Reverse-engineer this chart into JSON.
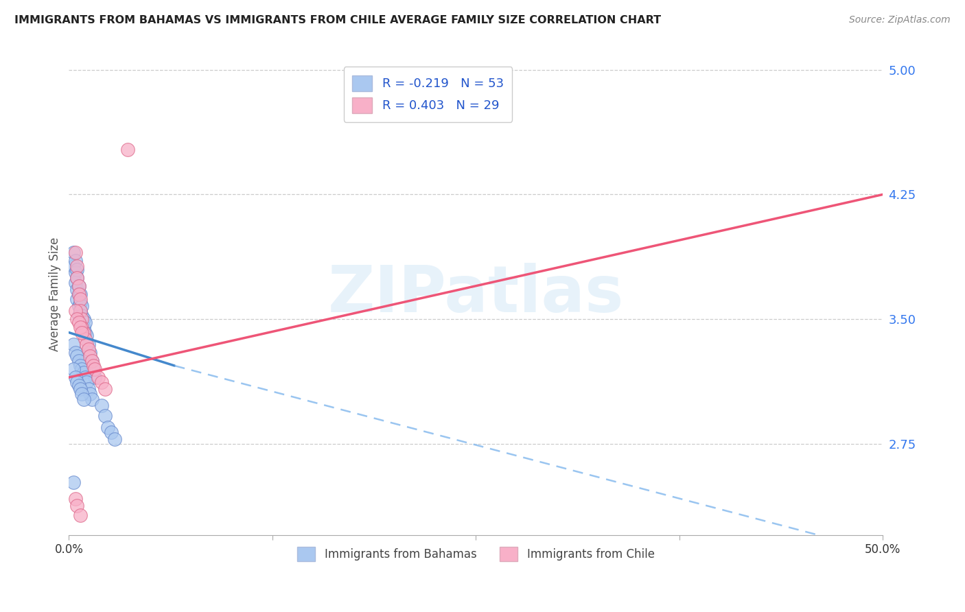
{
  "title": "IMMIGRANTS FROM BAHAMAS VS IMMIGRANTS FROM CHILE AVERAGE FAMILY SIZE CORRELATION CHART",
  "source": "Source: ZipAtlas.com",
  "ylabel": "Average Family Size",
  "xlim": [
    0.0,
    0.5
  ],
  "ylim": [
    2.2,
    5.1
  ],
  "xticks": [
    0.0,
    0.125,
    0.25,
    0.375,
    0.5
  ],
  "xtick_labels": [
    "0.0%",
    "",
    "",
    "",
    "50.0%"
  ],
  "ytick_positions_right": [
    5.0,
    4.25,
    3.5,
    2.75
  ],
  "ytick_labels_right": [
    "5.00",
    "4.25",
    "3.50",
    "2.75"
  ],
  "background_color": "#ffffff",
  "grid_color": "#cccccc",
  "watermark_text": "ZIPatlas",
  "series_bahamas": {
    "label": "Immigrants from Bahamas",
    "R": -0.219,
    "N": 53,
    "color": "#aac8f0",
    "edge_color": "#6688cc",
    "x": [
      0.003,
      0.003,
      0.004,
      0.004,
      0.004,
      0.005,
      0.005,
      0.005,
      0.005,
      0.006,
      0.006,
      0.006,
      0.006,
      0.007,
      0.007,
      0.007,
      0.008,
      0.008,
      0.009,
      0.009,
      0.01,
      0.01,
      0.011,
      0.012,
      0.013,
      0.014,
      0.015,
      0.016,
      0.003,
      0.004,
      0.005,
      0.006,
      0.007,
      0.008,
      0.009,
      0.01,
      0.011,
      0.012,
      0.013,
      0.014,
      0.02,
      0.022,
      0.024,
      0.026,
      0.028,
      0.003,
      0.004,
      0.005,
      0.006,
      0.007,
      0.008,
      0.009,
      0.003
    ],
    "y": [
      3.9,
      3.82,
      3.85,
      3.78,
      3.72,
      3.8,
      3.75,
      3.68,
      3.62,
      3.7,
      3.65,
      3.58,
      3.52,
      3.65,
      3.6,
      3.55,
      3.58,
      3.52,
      3.5,
      3.45,
      3.48,
      3.42,
      3.4,
      3.35,
      3.3,
      3.25,
      3.2,
      3.15,
      3.35,
      3.3,
      3.28,
      3.25,
      3.22,
      3.2,
      3.18,
      3.15,
      3.12,
      3.08,
      3.05,
      3.02,
      2.98,
      2.92,
      2.85,
      2.82,
      2.78,
      3.2,
      3.15,
      3.12,
      3.1,
      3.08,
      3.05,
      3.02,
      2.52
    ]
  },
  "series_chile": {
    "label": "Immigrants from Chile",
    "R": 0.403,
    "N": 29,
    "color": "#f8b0c8",
    "edge_color": "#dd6688",
    "x": [
      0.004,
      0.005,
      0.005,
      0.006,
      0.006,
      0.007,
      0.007,
      0.008,
      0.008,
      0.009,
      0.01,
      0.011,
      0.012,
      0.013,
      0.014,
      0.015,
      0.016,
      0.018,
      0.02,
      0.022,
      0.004,
      0.005,
      0.006,
      0.007,
      0.008,
      0.036,
      0.004,
      0.005,
      0.007
    ],
    "y": [
      3.9,
      3.82,
      3.75,
      3.7,
      3.65,
      3.62,
      3.55,
      3.5,
      3.45,
      3.42,
      3.38,
      3.35,
      3.32,
      3.28,
      3.25,
      3.22,
      3.2,
      3.15,
      3.12,
      3.08,
      3.55,
      3.5,
      3.48,
      3.45,
      3.42,
      4.52,
      2.42,
      2.38,
      2.32
    ]
  },
  "trend_bahamas_solid": {
    "x": [
      0.0,
      0.065
    ],
    "y": [
      3.42,
      3.22
    ],
    "color": "#4488cc",
    "linewidth": 2.5
  },
  "trend_bahamas_dash": {
    "x": [
      0.065,
      0.5
    ],
    "y": [
      3.22,
      2.1
    ],
    "color": "#88bbee",
    "linewidth": 1.8,
    "dash": [
      6,
      4
    ]
  },
  "trend_chile": {
    "x": [
      0.0,
      0.5
    ],
    "y": [
      3.15,
      4.25
    ],
    "color": "#ee5577",
    "linewidth": 2.5
  }
}
